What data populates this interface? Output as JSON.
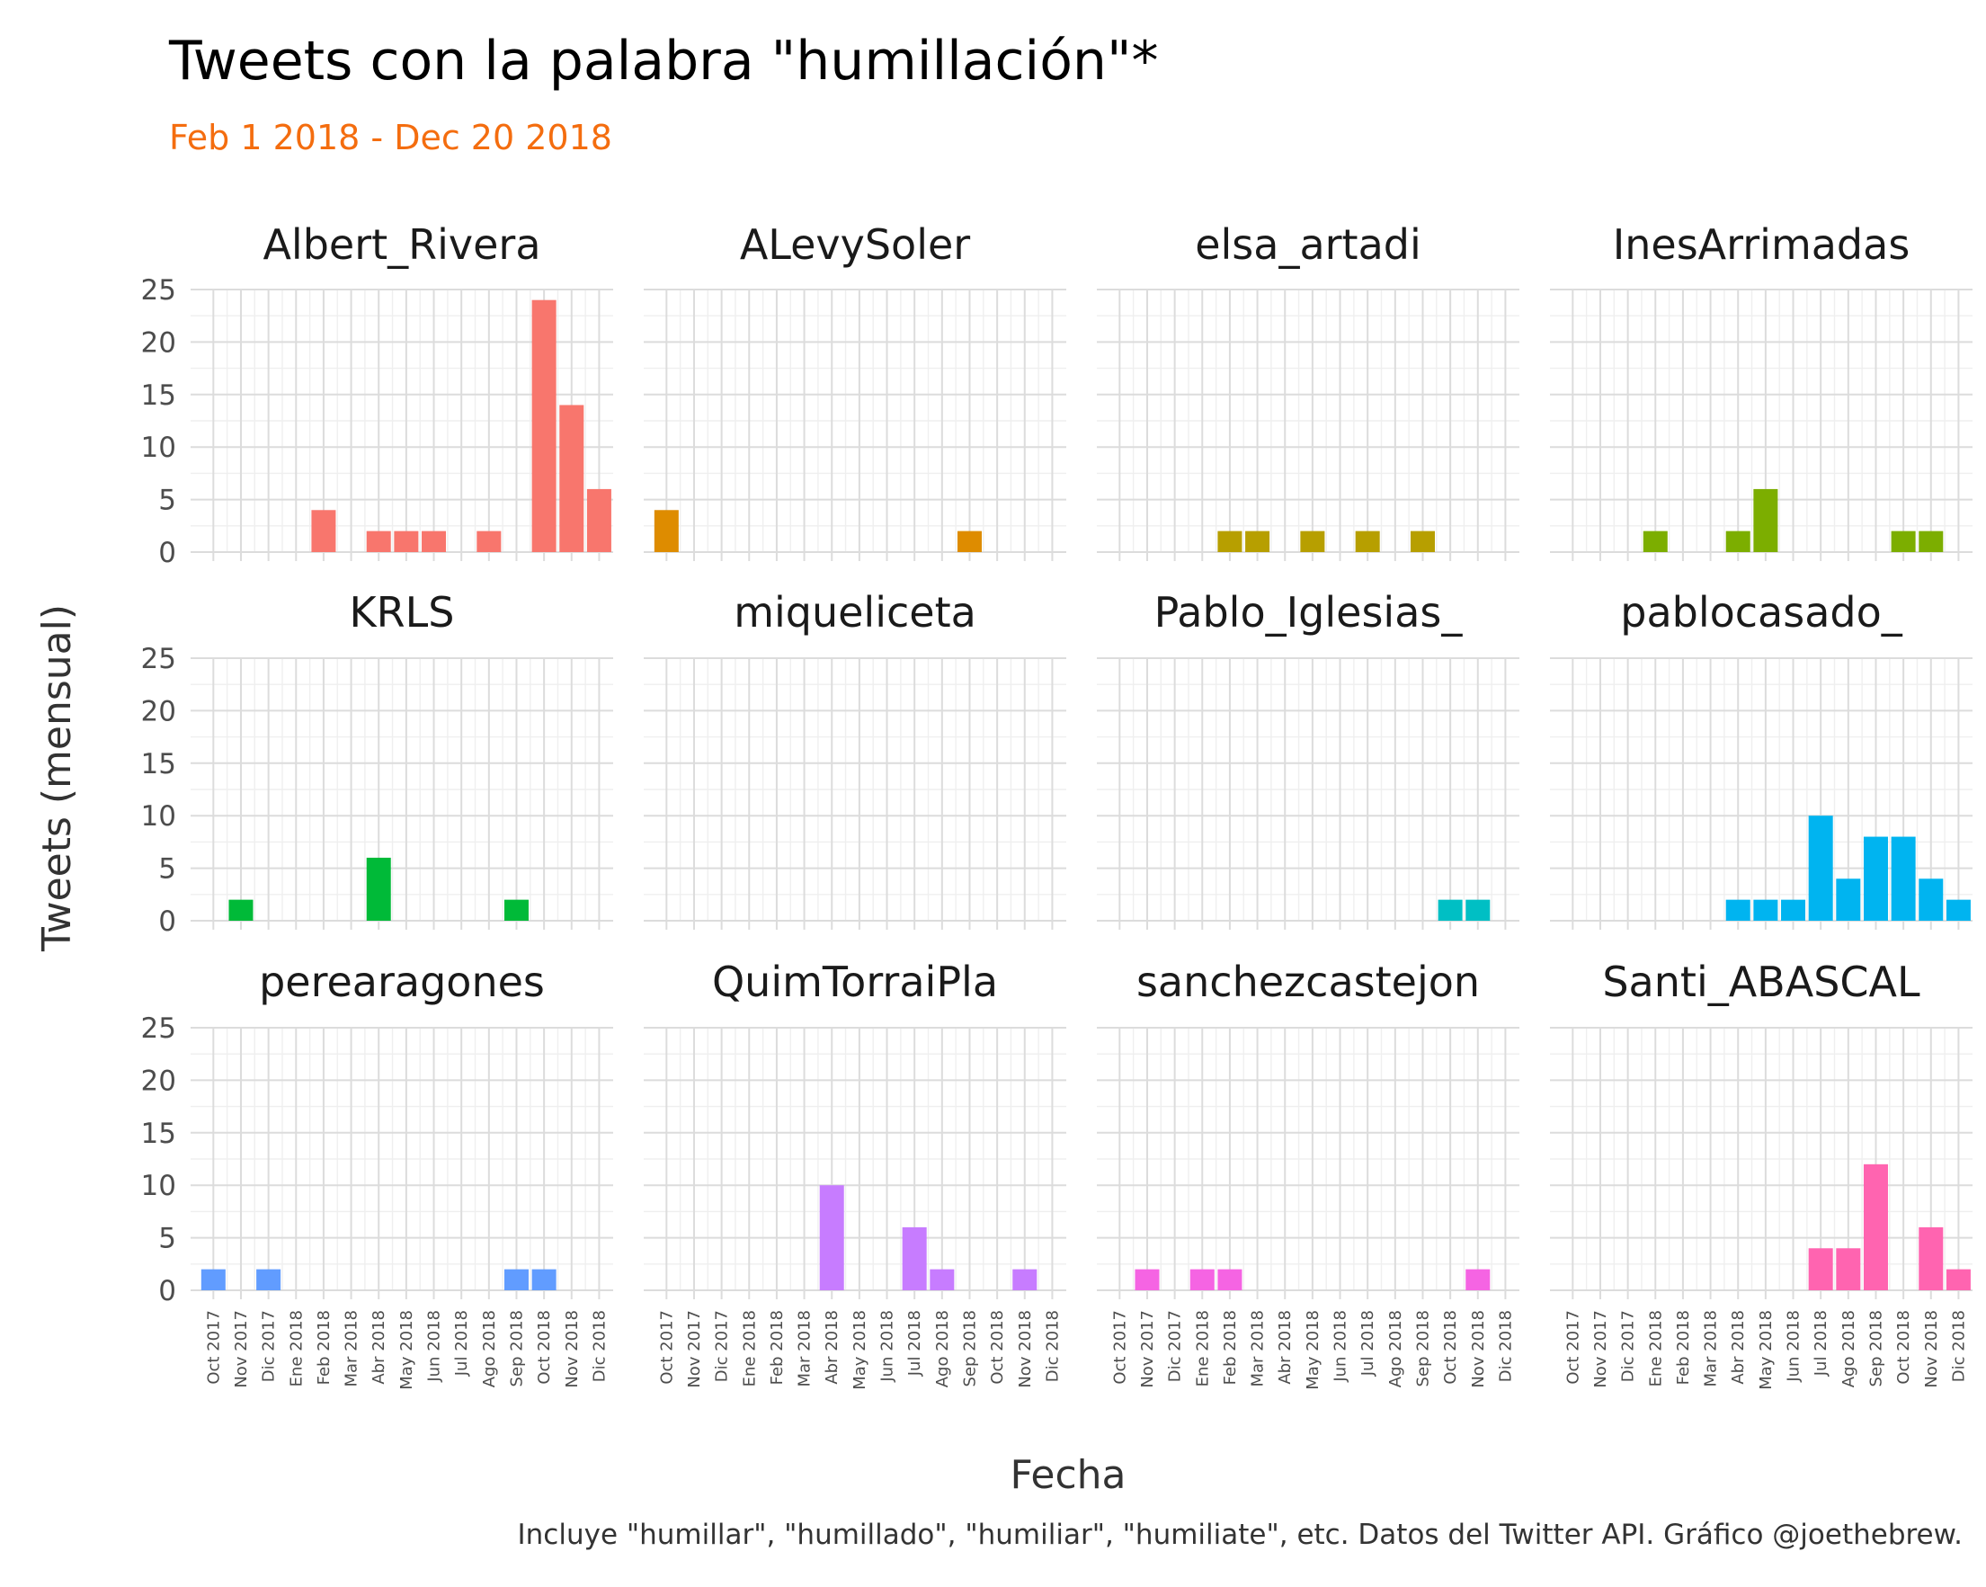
{
  "chart_data": {
    "type": "bar",
    "title": "Tweets con la palabra \"humillación\"*",
    "subtitle": "Feb 1 2018 - Dec 20 2018",
    "ylabel": "Tweets (mensual)",
    "xlabel": "Fecha",
    "caption": "Incluye \"humillar\", \"humillado\", \"humiliar\", \"humiliate\", etc. Datos del Twitter API. Gráfico @joethebrew.",
    "ylim": [
      0,
      25
    ],
    "yticks": [
      "0",
      "5",
      "10",
      "15",
      "20",
      "25"
    ],
    "grid": true,
    "facet_layout": "3 rows x 4 columns, shared axes",
    "categories": [
      "Oct 2017",
      "Nov 2017",
      "Dic 2017",
      "Ene 2018",
      "Feb 2018",
      "Mar 2018",
      "Abr 2018",
      "May 2018",
      "Jun 2018",
      "Jul 2018",
      "Ago 2018",
      "Sep 2018",
      "Oct 2018",
      "Nov 2018",
      "Dic 2018"
    ],
    "colors": {
      "subtitle": "#f46d0f",
      "series": [
        "#f8766d",
        "#de8c00",
        "#b79f00",
        "#7cae00",
        "#00ba38",
        "#00c08b",
        "#00bfc4",
        "#00b4f0",
        "#619cff",
        "#c77cff",
        "#f564e3",
        "#ff64b0"
      ]
    },
    "series": [
      {
        "name": "Albert_Rivera",
        "values": [
          0,
          0,
          0,
          0,
          4,
          0,
          2,
          2,
          2,
          0,
          2,
          0,
          24,
          14,
          6
        ]
      },
      {
        "name": "ALevySoler",
        "values": [
          4,
          0,
          0,
          0,
          0,
          0,
          0,
          0,
          0,
          0,
          0,
          2,
          0,
          0,
          0
        ]
      },
      {
        "name": "elsa_artadi",
        "values": [
          0,
          0,
          0,
          0,
          2,
          2,
          0,
          2,
          0,
          2,
          0,
          2,
          0,
          0,
          0
        ]
      },
      {
        "name": "InesArrimadas",
        "values": [
          0,
          0,
          0,
          2,
          0,
          0,
          2,
          6,
          0,
          0,
          0,
          0,
          2,
          2,
          0
        ]
      },
      {
        "name": "KRLS",
        "values": [
          0,
          2,
          0,
          0,
          0,
          0,
          6,
          0,
          0,
          0,
          0,
          2,
          0,
          0,
          0
        ]
      },
      {
        "name": "miqueliceta",
        "values": [
          0,
          0,
          0,
          0,
          0,
          0,
          0,
          0,
          0,
          0,
          0,
          0,
          0,
          0,
          0
        ]
      },
      {
        "name": "Pablo_Iglesias_",
        "values": [
          0,
          0,
          0,
          0,
          0,
          0,
          0,
          0,
          0,
          0,
          0,
          0,
          2,
          2,
          0
        ]
      },
      {
        "name": "pablocasado_",
        "values": [
          0,
          0,
          0,
          0,
          0,
          0,
          2,
          2,
          2,
          10,
          4,
          8,
          8,
          4,
          2
        ]
      },
      {
        "name": "perearagones",
        "values": [
          2,
          0,
          2,
          0,
          0,
          0,
          0,
          0,
          0,
          0,
          0,
          2,
          2,
          0,
          0
        ]
      },
      {
        "name": "QuimTorraiPla",
        "values": [
          0,
          0,
          0,
          0,
          0,
          0,
          10,
          0,
          0,
          6,
          2,
          0,
          0,
          2,
          0
        ]
      },
      {
        "name": "sanchezcastejon",
        "values": [
          0,
          2,
          0,
          2,
          2,
          0,
          0,
          0,
          0,
          0,
          0,
          0,
          0,
          2,
          0
        ]
      },
      {
        "name": "Santi_ABASCAL",
        "values": [
          0,
          0,
          0,
          0,
          0,
          0,
          0,
          0,
          0,
          4,
          4,
          12,
          0,
          6,
          2
        ]
      }
    ]
  }
}
